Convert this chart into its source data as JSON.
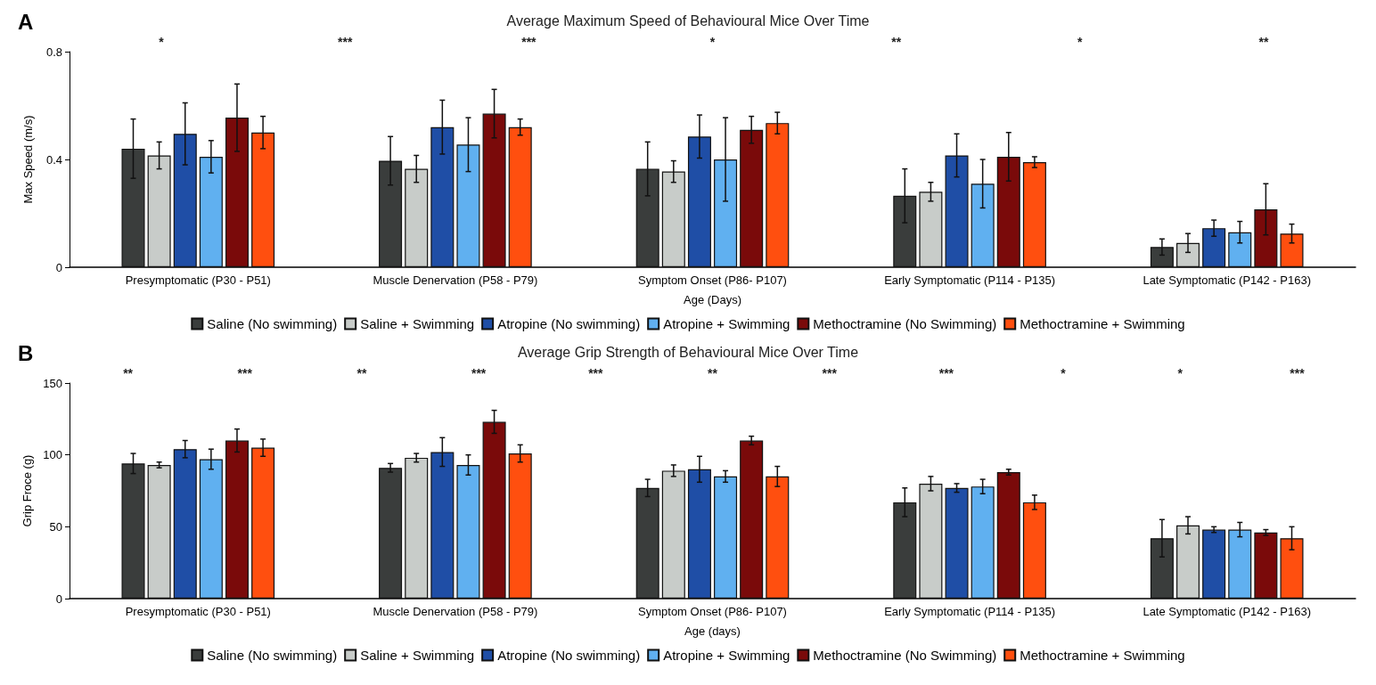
{
  "chart_data": [
    {
      "type": "bar",
      "title": "Average Maximum Speed of Behavioural Mice Over Time",
      "xlabel": "Age (Days)",
      "ylabel": "Max Speed (m/s)",
      "categories": [
        "Presymptomatic (P30 - P51)",
        "Muscle Denervation (P58 - P79)",
        "Symptom Onset (P86- P107)",
        "Early Symptomatic (P114 - P135)",
        "Late Symptomatic (P142 - P163)"
      ],
      "series": [
        {
          "name": "Saline (No swimming)",
          "color": "#3a3d3c",
          "values": [
            0.44,
            0.395,
            0.365,
            0.265,
            0.075
          ],
          "errors": [
            0.11,
            0.09,
            0.1,
            0.1,
            0.03
          ]
        },
        {
          "name": "Saline + Swimming",
          "color": "#c8ccc9",
          "values": [
            0.415,
            0.365,
            0.355,
            0.28,
            0.09
          ],
          "errors": [
            0.05,
            0.05,
            0.04,
            0.035,
            0.035
          ]
        },
        {
          "name": "Atropine (No swimming)",
          "color": "#1f4ea6",
          "values": [
            0.495,
            0.52,
            0.485,
            0.415,
            0.145
          ],
          "errors": [
            0.115,
            0.1,
            0.08,
            0.08,
            0.03
          ]
        },
        {
          "name": "Atropine + Swimming",
          "color": "#60b0f0",
          "values": [
            0.41,
            0.455,
            0.4,
            0.31,
            0.13
          ],
          "errors": [
            0.06,
            0.1,
            0.155,
            0.09,
            0.04
          ]
        },
        {
          "name": "Methoctramine (No Swimming)",
          "color": "#7a0a0a",
          "values": [
            0.555,
            0.57,
            0.51,
            0.41,
            0.215
          ],
          "errors": [
            0.125,
            0.09,
            0.05,
            0.09,
            0.095
          ]
        },
        {
          "name": "Methoctramine + Swimming",
          "color": "#ff4f0f",
          "values": [
            0.5,
            0.52,
            0.535,
            0.39,
            0.125
          ],
          "errors": [
            0.06,
            0.03,
            0.04,
            0.02,
            0.035
          ]
        }
      ],
      "ylim": [
        0,
        0.8
      ],
      "yticks": [
        0,
        0.4,
        0.8
      ],
      "grid": false,
      "legend": "bottom",
      "annotations": [
        "A",
        "*",
        "***",
        "***",
        "*",
        "**",
        "*",
        "**"
      ]
    },
    {
      "type": "bar",
      "title": "Average Grip Strength of Behavioural Mice Over Time",
      "xlabel": "Age (days)",
      "ylabel": "Grip Froce (g)",
      "categories": [
        "Presymptomatic (P30 - P51)",
        "Muscle Denervation (P58 - P79)",
        "Symptom Onset (P86- P107)",
        "Early Symptomatic (P114 - P135)",
        "Late Symptomatic (P142 - P163)"
      ],
      "series": [
        {
          "name": "Saline (No swimming)",
          "color": "#3a3d3c",
          "values": [
            94,
            91,
            77,
            67,
            42
          ],
          "errors": [
            7,
            3,
            6,
            10,
            13
          ]
        },
        {
          "name": "Saline + Swimming",
          "color": "#c8ccc9",
          "values": [
            93,
            98,
            89,
            80,
            51
          ],
          "errors": [
            2,
            3,
            4,
            5,
            6
          ]
        },
        {
          "name": "Atropine (No swimming)",
          "color": "#1f4ea6",
          "values": [
            104,
            102,
            90,
            77,
            48
          ],
          "errors": [
            6,
            10,
            9,
            3,
            2
          ]
        },
        {
          "name": "Atropine + Swimming",
          "color": "#60b0f0",
          "values": [
            97,
            93,
            85,
            78,
            48
          ],
          "errors": [
            7,
            7,
            4,
            5,
            5
          ]
        },
        {
          "name": "Methoctramine (No Swimming)",
          "color": "#7a0a0a",
          "values": [
            110,
            123,
            110,
            88,
            46
          ],
          "errors": [
            8,
            8,
            3,
            2,
            2
          ]
        },
        {
          "name": "Methoctramine + Swimming",
          "color": "#ff4f0f",
          "values": [
            105,
            101,
            85,
            67,
            42
          ],
          "errors": [
            6,
            6,
            7,
            5,
            8
          ]
        }
      ],
      "ylim": [
        0,
        150
      ],
      "yticks": [
        0,
        50,
        100,
        150
      ],
      "grid": false,
      "legend": "bottom",
      "annotations": [
        "B",
        "**",
        "***",
        "**",
        "***",
        "***",
        "**",
        "***",
        "***",
        "*",
        "*",
        "***"
      ]
    }
  ]
}
